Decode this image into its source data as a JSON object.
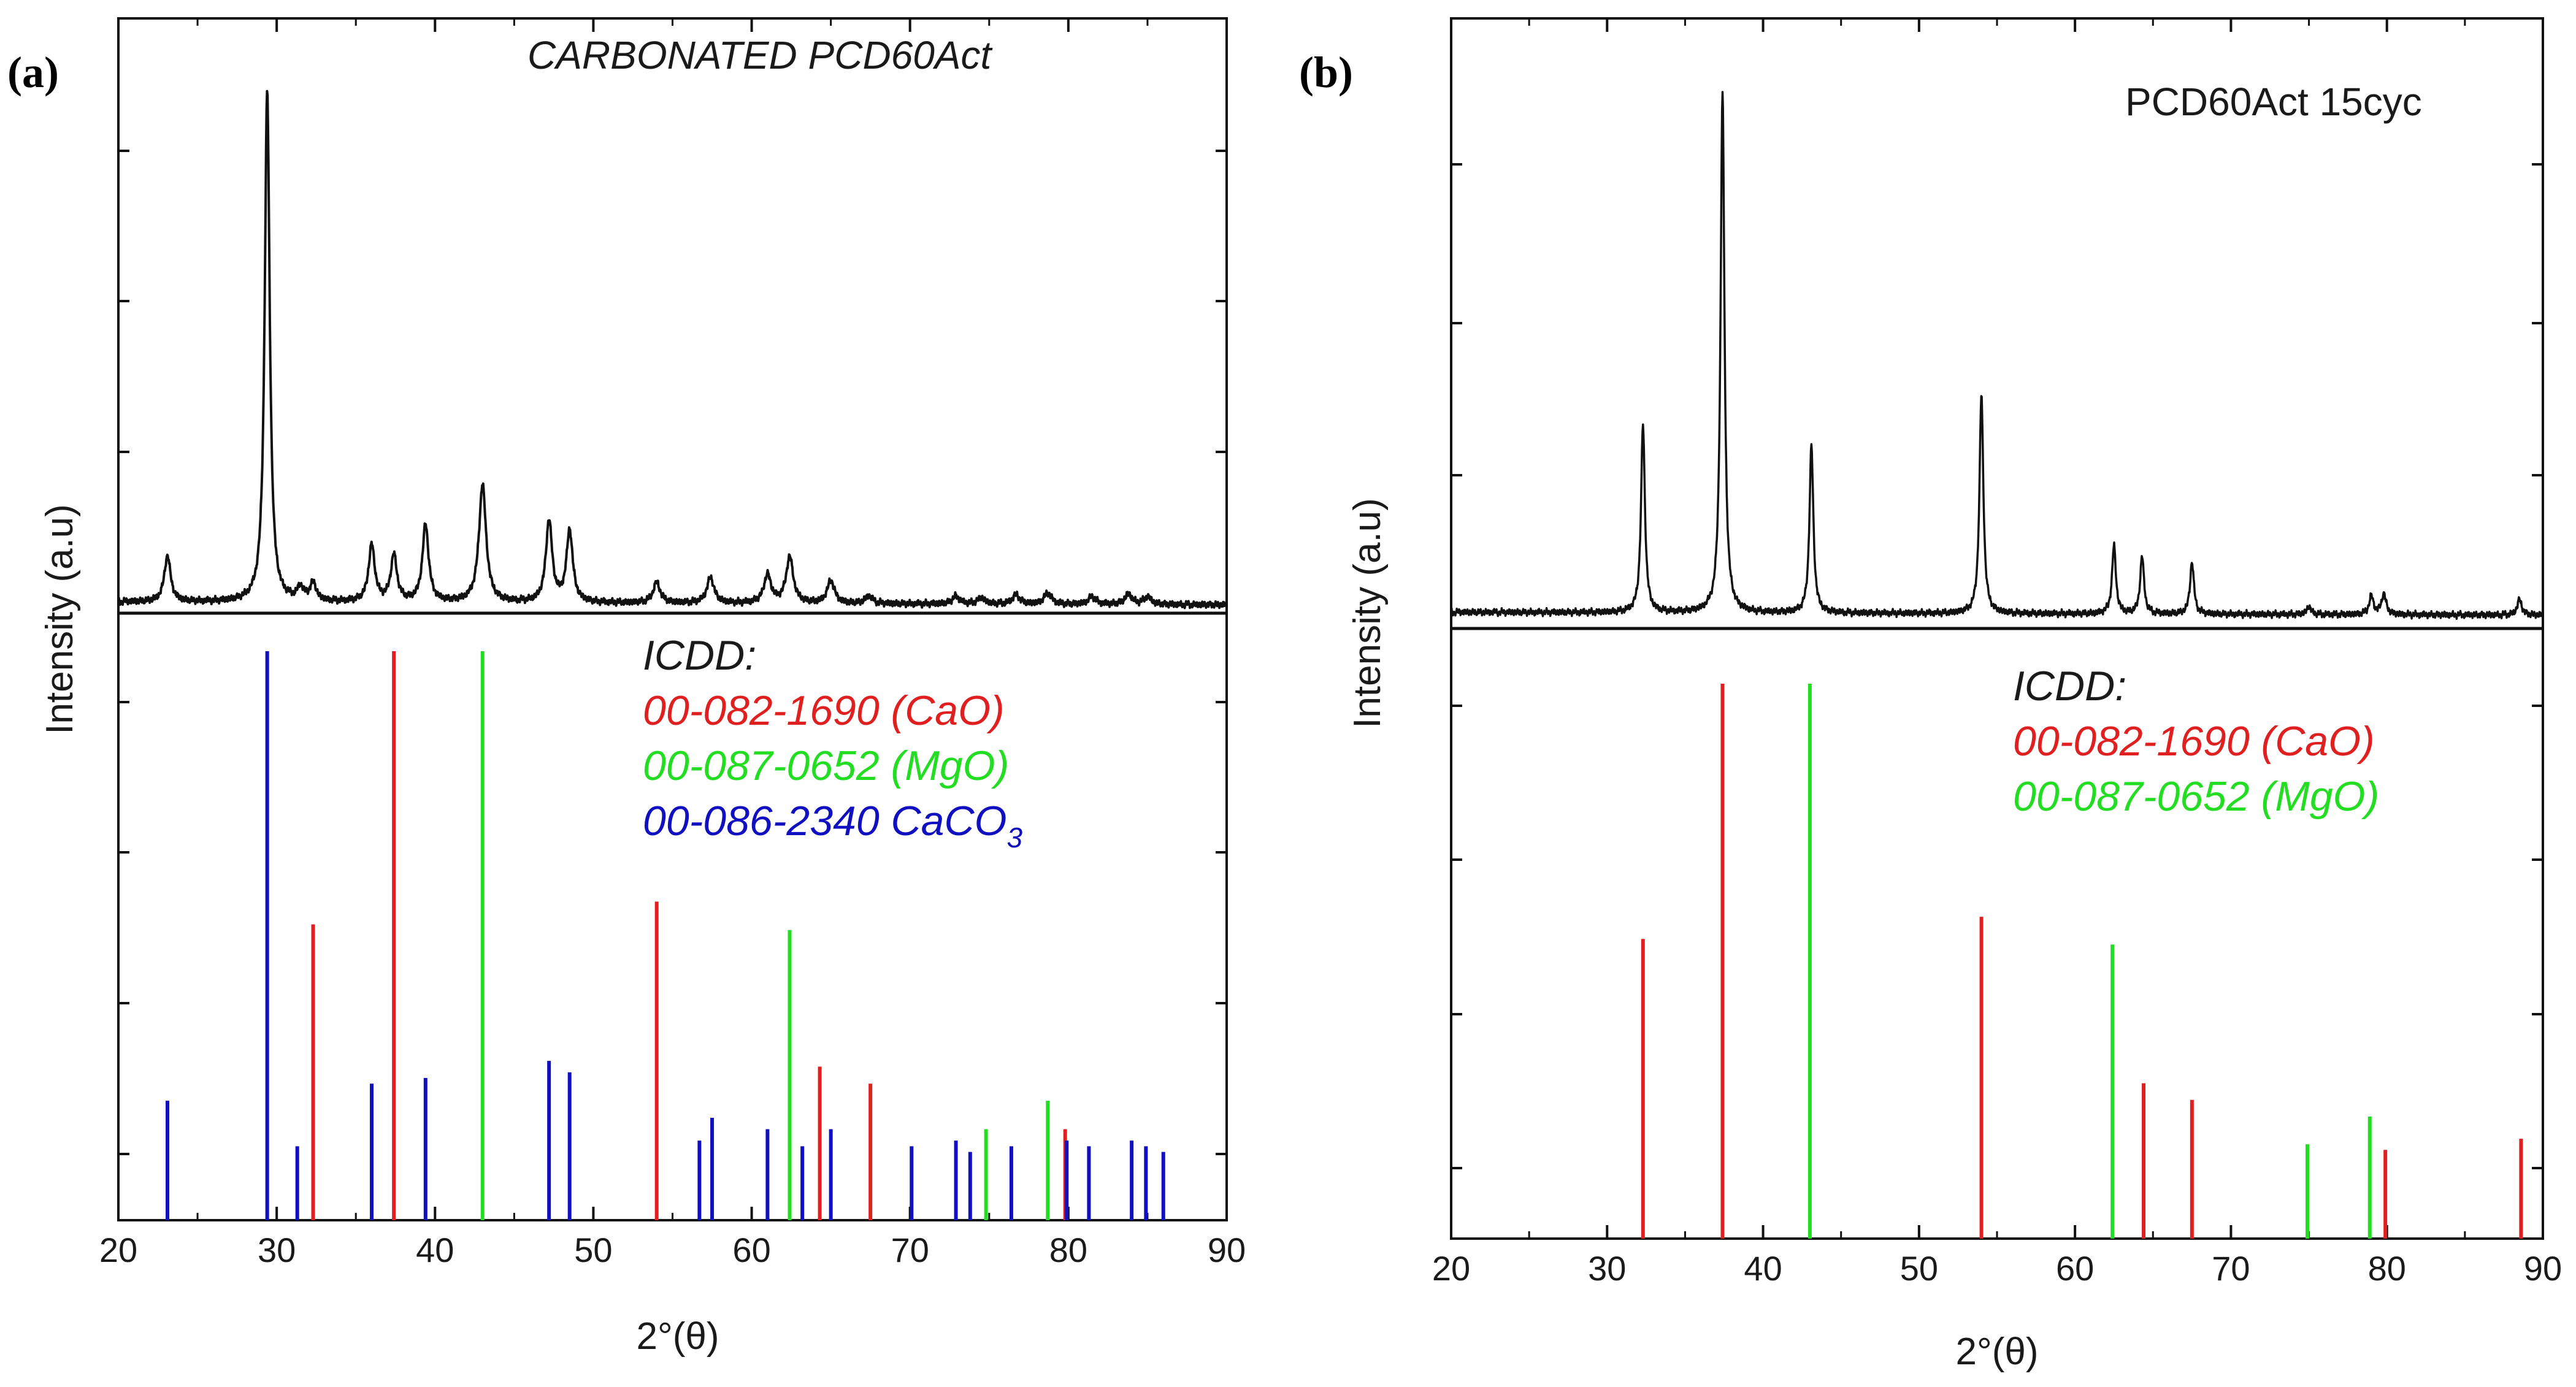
{
  "chart_data": [
    {
      "type": "line",
      "panel_label": "(a)",
      "title": "CARBONATED PCD60Act",
      "title_style": "italic",
      "xlabel": "2°(θ)",
      "ylabel": "Intensity (a.u)",
      "xlim": [
        20,
        90
      ],
      "xticks": [
        20,
        30,
        40,
        50,
        60,
        70,
        80,
        90
      ],
      "pattern_ylim": [
        0,
        100
      ],
      "pattern_peaks": [
        {
          "x": 23.1,
          "h": 9,
          "w": 0.35
        },
        {
          "x": 29.4,
          "h": 100,
          "w": 0.28
        },
        {
          "x": 31.5,
          "h": 2.5,
          "w": 0.35
        },
        {
          "x": 32.3,
          "h": 3.5,
          "w": 0.35
        },
        {
          "x": 36.0,
          "h": 11,
          "w": 0.35
        },
        {
          "x": 37.4,
          "h": 9,
          "w": 0.35
        },
        {
          "x": 39.4,
          "h": 15,
          "w": 0.35
        },
        {
          "x": 43.0,
          "h": 23,
          "w": 0.4
        },
        {
          "x": 47.2,
          "h": 16,
          "w": 0.35
        },
        {
          "x": 48.5,
          "h": 14,
          "w": 0.35
        },
        {
          "x": 54.0,
          "h": 4,
          "w": 0.4
        },
        {
          "x": 57.4,
          "h": 5,
          "w": 0.4
        },
        {
          "x": 61.0,
          "h": 5.5,
          "w": 0.4
        },
        {
          "x": 62.4,
          "h": 9,
          "w": 0.4
        },
        {
          "x": 65.0,
          "h": 4.5,
          "w": 0.4
        },
        {
          "x": 67.4,
          "h": 1.5,
          "w": 0.4
        },
        {
          "x": 72.9,
          "h": 1.5,
          "w": 0.4
        },
        {
          "x": 74.5,
          "h": 1.2,
          "w": 0.4
        },
        {
          "x": 76.7,
          "h": 1.8,
          "w": 0.4
        },
        {
          "x": 78.7,
          "h": 2.2,
          "w": 0.4
        },
        {
          "x": 81.5,
          "h": 1.5,
          "w": 0.4
        },
        {
          "x": 83.8,
          "h": 2.0,
          "w": 0.4
        },
        {
          "x": 85.0,
          "h": 1.5,
          "w": 0.4
        }
      ],
      "reference_ylim": [
        0,
        100
      ],
      "reference_legend_title": "ICDD:",
      "reference_series": [
        {
          "name": "00-082-1690 (CaO)",
          "color": "#e02020",
          "x": [
            32.3,
            37.4,
            54.0,
            64.3,
            67.5,
            79.8
          ],
          "values": [
            52,
            100,
            56,
            27,
            24,
            16
          ]
        },
        {
          "name": "00-087-0652 (MgO)",
          "color": "#22dd22",
          "x": [
            43.0,
            62.4,
            74.8,
            78.7
          ],
          "values": [
            100,
            51,
            16,
            21
          ]
        },
        {
          "name": "00-086-2340 CaCO",
          "name_subscript": "3",
          "color": "#1010c0",
          "x": [
            23.1,
            29.4,
            31.3,
            36.0,
            39.4,
            47.2,
            48.5,
            56.7,
            57.5,
            61.0,
            63.2,
            65.0,
            70.1,
            72.9,
            73.8,
            76.4,
            79.9,
            81.3,
            84.0,
            84.9,
            86.0
          ],
          "values": [
            21,
            100,
            13,
            24,
            25,
            28,
            26,
            14,
            18,
            16,
            13,
            16,
            13,
            14,
            12,
            13,
            14,
            13,
            14,
            13,
            12
          ]
        }
      ]
    },
    {
      "type": "line",
      "panel_label": "(b)",
      "title": "PCD60Act 15cyc",
      "title_style": "normal",
      "xlabel": "2°(θ)",
      "ylabel": "Intensity (a.u)",
      "xlim": [
        20,
        90
      ],
      "xticks": [
        20,
        30,
        40,
        50,
        60,
        70,
        80,
        90
      ],
      "pattern_ylim": [
        0,
        100
      ],
      "pattern_peaks": [
        {
          "x": 32.3,
          "h": 36,
          "w": 0.22
        },
        {
          "x": 37.4,
          "h": 100,
          "w": 0.22
        },
        {
          "x": 43.1,
          "h": 32,
          "w": 0.22
        },
        {
          "x": 54.0,
          "h": 42,
          "w": 0.22
        },
        {
          "x": 62.5,
          "h": 13,
          "w": 0.22
        },
        {
          "x": 64.3,
          "h": 11,
          "w": 0.22
        },
        {
          "x": 67.5,
          "h": 10,
          "w": 0.22
        },
        {
          "x": 75.0,
          "h": 1.5,
          "w": 0.25
        },
        {
          "x": 79.0,
          "h": 3.5,
          "w": 0.25
        },
        {
          "x": 79.8,
          "h": 4.0,
          "w": 0.25
        },
        {
          "x": 88.5,
          "h": 3.0,
          "w": 0.25
        }
      ],
      "reference_ylim": [
        0,
        100
      ],
      "reference_legend_title": "ICDD:",
      "reference_series": [
        {
          "name": "00-082-1690 (CaO)",
          "color": "#e02020",
          "x": [
            32.3,
            37.4,
            54.0,
            64.4,
            67.5,
            79.9,
            88.6
          ],
          "values": [
            54,
            100,
            58,
            28,
            25,
            16,
            18
          ]
        },
        {
          "name": "00-087-0652 (MgO)",
          "color": "#22dd22",
          "x": [
            43.0,
            62.4,
            74.9,
            78.9
          ],
          "values": [
            100,
            53,
            17,
            22
          ]
        }
      ]
    }
  ]
}
